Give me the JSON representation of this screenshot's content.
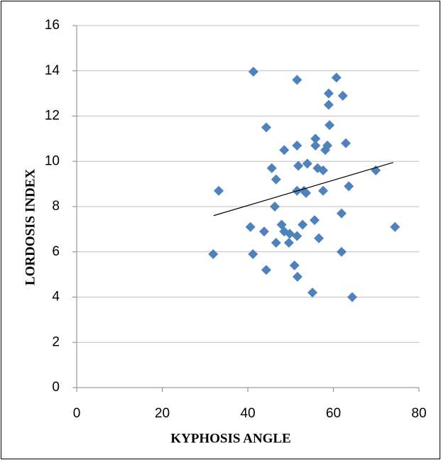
{
  "chart_data": {
    "type": "scatter",
    "x_label": "KYPHOSIS ANGLE",
    "y_label": "LORDOSIS INDEX",
    "xlim": [
      0,
      80
    ],
    "xticks": [
      0,
      20,
      40,
      60,
      80
    ],
    "ylim": [
      0,
      16
    ],
    "yticks": [
      0,
      2,
      4,
      6,
      8,
      10,
      12,
      14,
      16
    ],
    "grid": true,
    "color": "#4f81bd",
    "x": [
      41.3,
      51.5,
      60.7,
      62.2,
      58.9,
      58.9,
      59.1,
      44.3,
      55.8,
      55.8,
      58.6,
      58.1,
      62.9,
      48.5,
      51.5,
      51.8,
      53.9,
      56.3,
      57.6,
      45.6,
      69.9,
      46.6,
      63.6,
      33.2,
      51.5,
      53.1,
      53.6,
      57.6,
      46.3,
      55.6,
      61.9,
      40.6,
      47.9,
      52.8,
      74.4,
      43.8,
      48.5,
      49.8,
      51.5,
      56.6,
      46.6,
      49.6,
      31.9,
      41.2,
      61.9,
      50.9,
      44.3,
      51.6,
      55.1,
      64.4
    ],
    "values": [
      13.96,
      13.6,
      13.7,
      12.9,
      13.0,
      12.5,
      11.6,
      11.5,
      11.0,
      10.7,
      10.7,
      10.5,
      10.8,
      10.5,
      10.7,
      9.8,
      9.9,
      9.7,
      9.6,
      9.7,
      9.6,
      9.2,
      8.9,
      8.7,
      8.7,
      8.7,
      8.6,
      8.7,
      8.0,
      7.4,
      7.7,
      7.1,
      7.2,
      7.2,
      7.1,
      6.9,
      6.9,
      6.8,
      6.7,
      6.6,
      6.4,
      6.4,
      5.9,
      5.9,
      6.0,
      5.4,
      5.2,
      4.9,
      4.2,
      4.0
    ],
    "trendline": {
      "x": [
        32,
        74
      ],
      "y": [
        7.6,
        9.95
      ],
      "color": "#000000"
    }
  }
}
